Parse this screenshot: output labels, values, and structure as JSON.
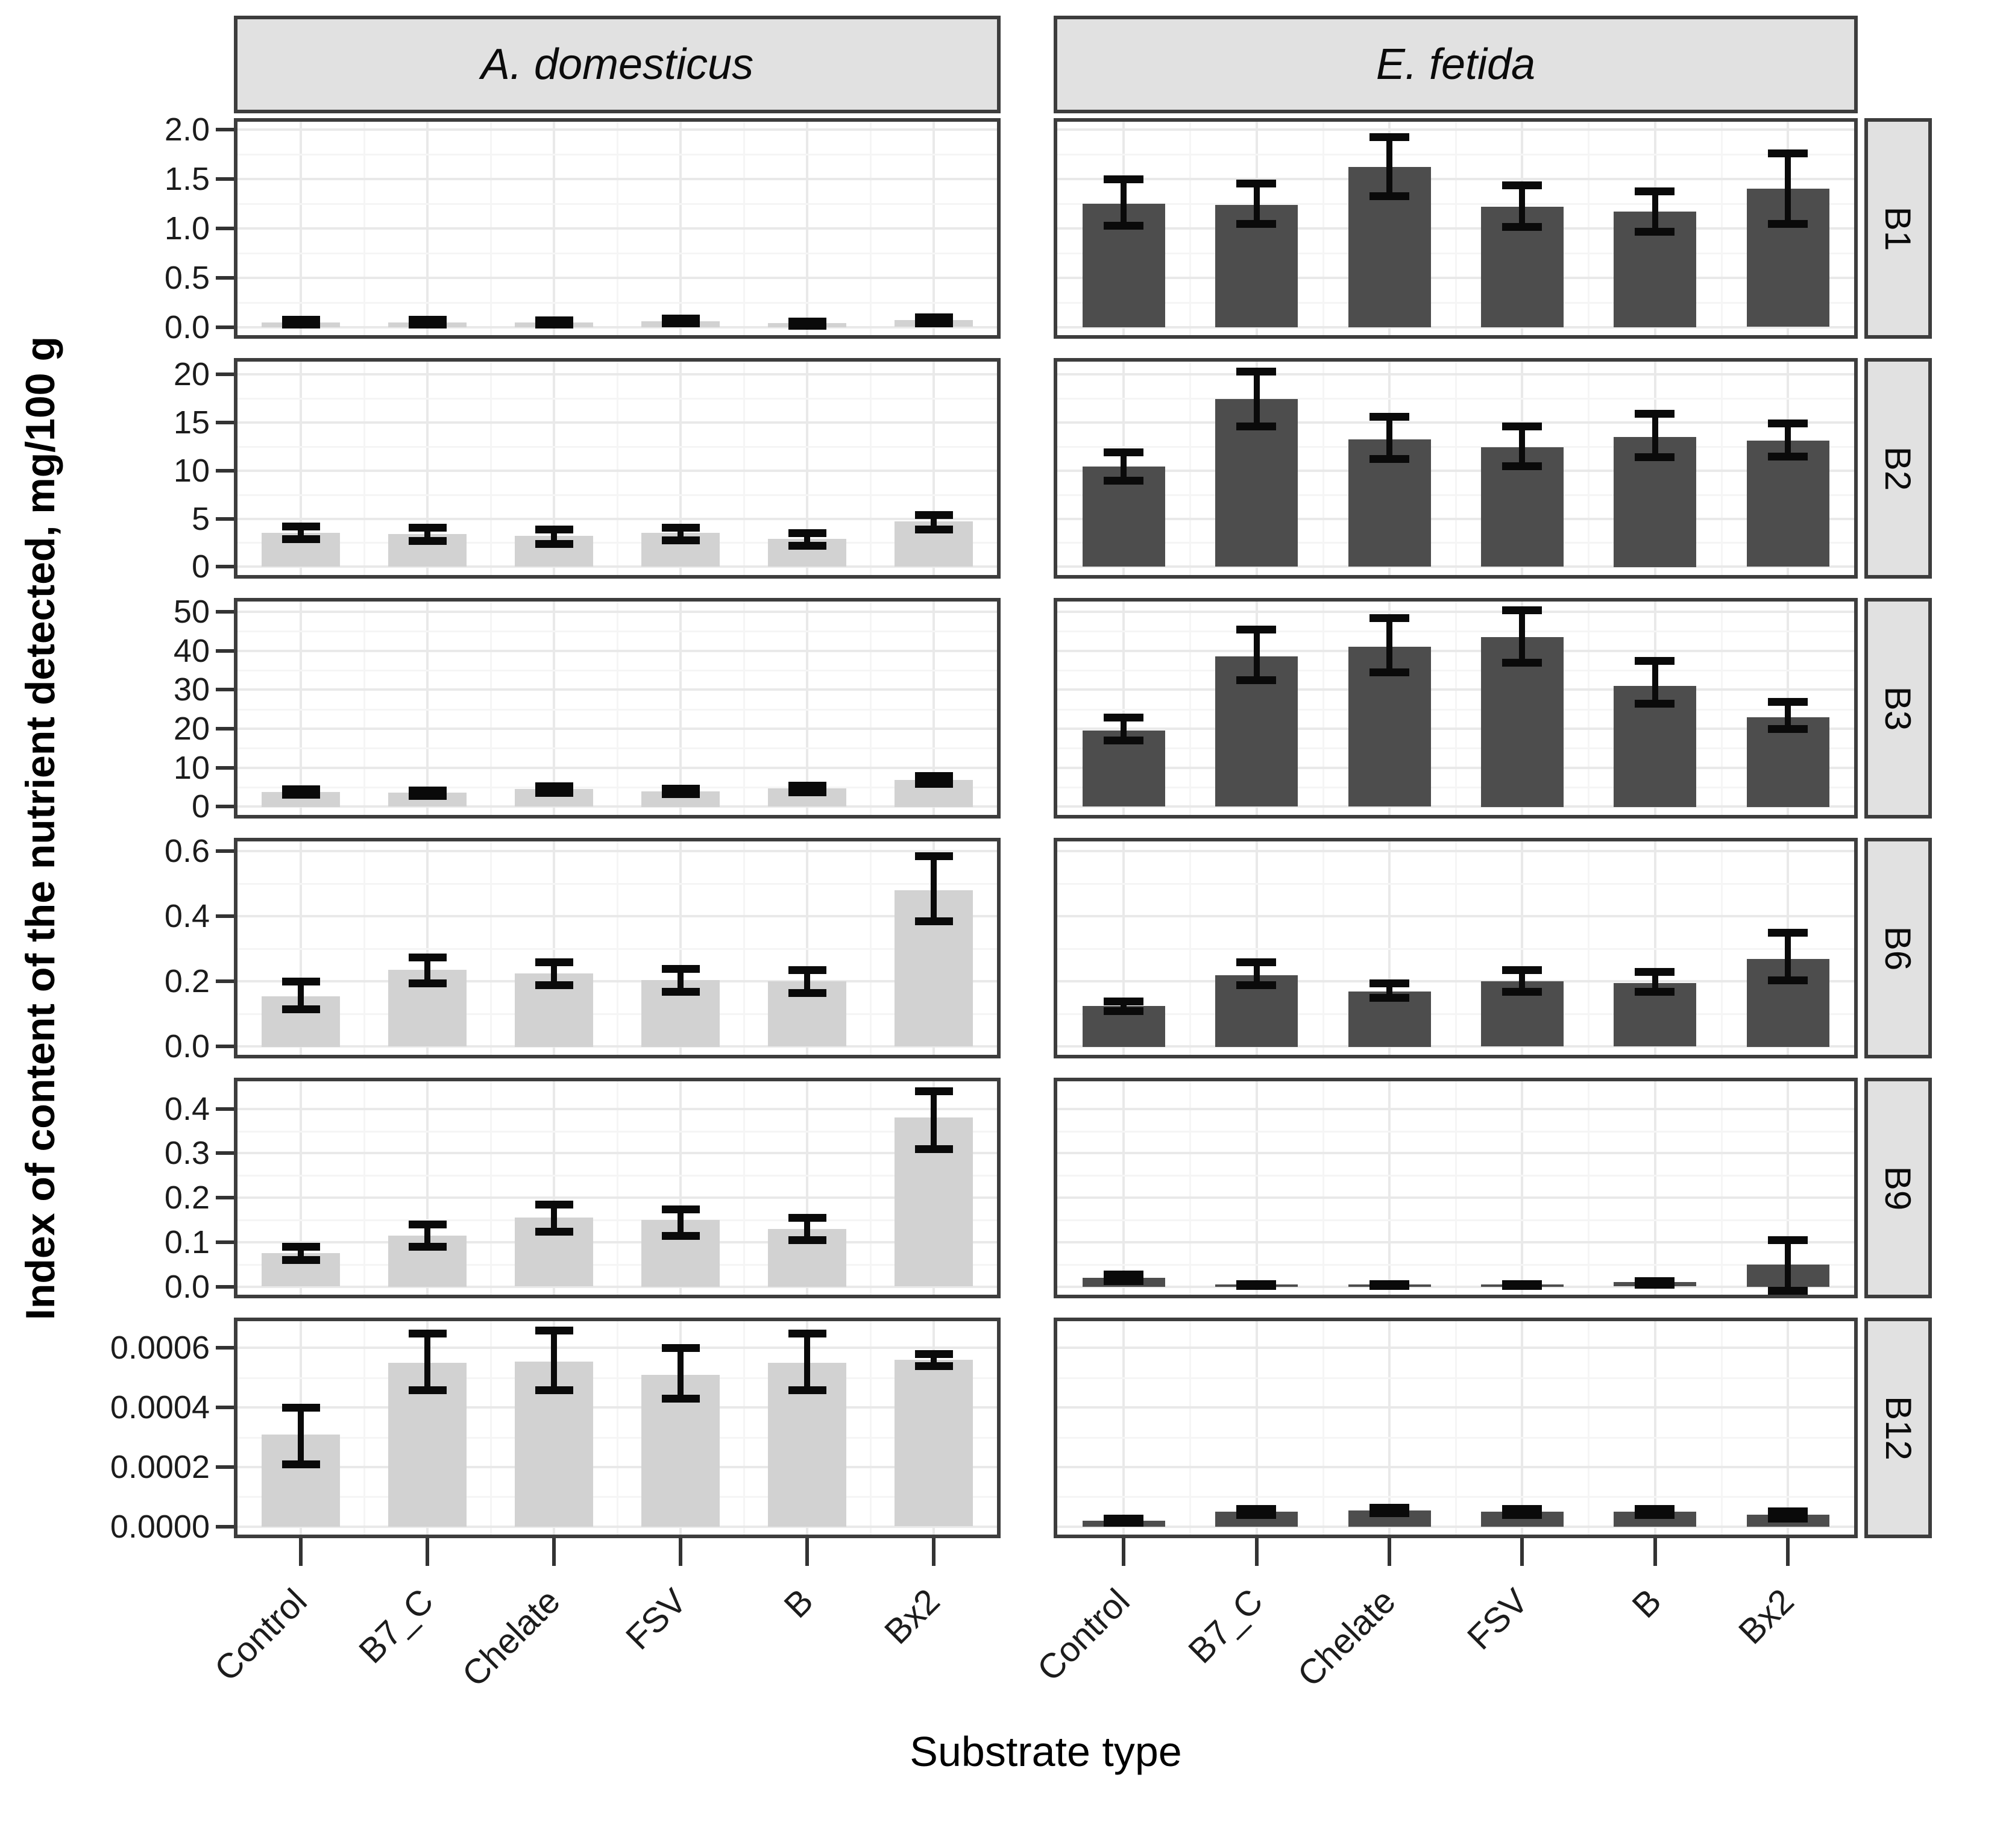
{
  "chart_data": {
    "type": "bar",
    "title": "",
    "xlabel": "Substrate type",
    "ylabel": "Index of content of the nutrient detected, mg/100 g",
    "facet_cols": [
      "A. domesticus",
      "E. fetida"
    ],
    "facet_rows": [
      "B1",
      "B2",
      "B3",
      "B6",
      "B9",
      "B12"
    ],
    "categories": [
      "Control",
      "B7_C",
      "Chelate",
      "FSV",
      "B",
      "Bx2"
    ],
    "legend_position": "none",
    "grid": "on",
    "error_bars": true,
    "col_colors": [
      "#d2d2d2",
      "#4d4d4d"
    ],
    "error_color": "#0a0a0a",
    "strip_bg": "#e1e1e1",
    "panel_border": "#3d3d3d",
    "rows": [
      {
        "label": "B1",
        "ylim": [
          -0.08,
          2.08
        ],
        "tick_values": [
          0.0,
          0.5,
          1.0,
          1.5,
          2.0
        ],
        "tick_labels": [
          "0.0",
          "0.5",
          "1.0",
          "1.5",
          "2.0"
        ],
        "series": [
          {
            "facet": "A. domesticus",
            "values": [
              0.05,
              0.05,
              0.05,
              0.06,
              0.04,
              0.07
            ],
            "err_low": [
              0.03,
              0.03,
              0.03,
              0.04,
              0.02,
              0.04
            ],
            "err_high": [
              0.08,
              0.08,
              0.07,
              0.09,
              0.06,
              0.1
            ]
          },
          {
            "facet": "E. fetida",
            "values": [
              1.25,
              1.24,
              1.62,
              1.22,
              1.17,
              1.4
            ],
            "err_low": [
              1.03,
              1.05,
              1.33,
              1.02,
              0.97,
              1.05
            ],
            "err_high": [
              1.5,
              1.46,
              1.93,
              1.44,
              1.38,
              1.76
            ]
          }
        ]
      },
      {
        "label": "B2",
        "ylim": [
          -0.85,
          21.3
        ],
        "tick_values": [
          0,
          5,
          10,
          15,
          20
        ],
        "tick_labels": [
          "0",
          "5",
          "10",
          "15",
          "20"
        ],
        "series": [
          {
            "facet": "A. domesticus",
            "values": [
              3.5,
              3.4,
              3.2,
              3.5,
              2.9,
              4.7
            ],
            "err_low": [
              2.9,
              2.7,
              2.4,
              2.8,
              2.2,
              3.9
            ],
            "err_high": [
              4.2,
              4.1,
              3.9,
              4.1,
              3.5,
              5.4
            ]
          },
          {
            "facet": "E. fetida",
            "values": [
              10.4,
              17.4,
              13.2,
              12.4,
              13.5,
              13.1
            ],
            "err_low": [
              9.0,
              14.6,
              11.2,
              10.5,
              11.4,
              11.5
            ],
            "err_high": [
              11.9,
              20.3,
              15.6,
              14.6,
              15.9,
              14.9
            ]
          }
        ]
      },
      {
        "label": "B3",
        "ylim": [
          -2.1,
          52.6
        ],
        "tick_values": [
          0,
          10,
          20,
          30,
          40,
          50
        ],
        "tick_labels": [
          "0",
          "10",
          "20",
          "30",
          "40",
          "50"
        ],
        "series": [
          {
            "facet": "A. domesticus",
            "values": [
              3.8,
              3.6,
              4.5,
              4.0,
              4.7,
              6.9
            ],
            "err_low": [
              3.1,
              2.8,
              3.6,
              3.3,
              3.8,
              5.9
            ],
            "err_high": [
              4.5,
              4.3,
              5.3,
              4.7,
              5.5,
              7.9
            ]
          },
          {
            "facet": "E. fetida",
            "values": [
              19.5,
              38.5,
              41.0,
              43.5,
              31.0,
              23.0
            ],
            "err_low": [
              17.0,
              32.5,
              34.5,
              37.0,
              26.5,
              20.0
            ],
            "err_high": [
              23.0,
              45.5,
              48.5,
              50.5,
              37.5,
              27.0
            ]
          }
        ]
      },
      {
        "label": "B6",
        "ylim": [
          -0.025,
          0.63
        ],
        "tick_values": [
          0.0,
          0.2,
          0.4,
          0.6
        ],
        "tick_labels": [
          "0.0",
          "0.2",
          "0.4",
          "0.6"
        ],
        "series": [
          {
            "facet": "A. domesticus",
            "values": [
              0.155,
              0.235,
              0.225,
              0.205,
              0.2,
              0.48
            ],
            "err_low": [
              0.115,
              0.195,
              0.19,
              0.17,
              0.165,
              0.385
            ],
            "err_high": [
              0.2,
              0.275,
              0.26,
              0.24,
              0.235,
              0.585
            ]
          },
          {
            "facet": "E. fetida",
            "values": [
              0.125,
              0.22,
              0.17,
              0.2,
              0.195,
              0.27
            ],
            "err_low": [
              0.11,
              0.19,
              0.15,
              0.17,
              0.17,
              0.205
            ],
            "err_high": [
              0.14,
              0.26,
              0.195,
              0.235,
              0.23,
              0.35
            ]
          }
        ]
      },
      {
        "label": "B9",
        "ylim": [
          -0.018,
          0.462
        ],
        "tick_values": [
          0.0,
          0.1,
          0.2,
          0.3,
          0.4
        ],
        "tick_labels": [
          "0.0",
          "0.1",
          "0.2",
          "0.3",
          "0.4"
        ],
        "series": [
          {
            "facet": "A. domesticus",
            "values": [
              0.075,
              0.115,
              0.155,
              0.15,
              0.13,
              0.38
            ],
            "err_low": [
              0.06,
              0.09,
              0.125,
              0.115,
              0.105,
              0.31
            ],
            "err_high": [
              0.09,
              0.14,
              0.185,
              0.175,
              0.155,
              0.44
            ]
          },
          {
            "facet": "E. fetida",
            "values": [
              0.02,
              0.005,
              0.005,
              0.005,
              0.01,
              0.05
            ],
            "err_low": [
              0.013,
              0.003,
              0.003,
              0.003,
              0.005,
              -0.008
            ],
            "err_high": [
              0.028,
              0.007,
              0.007,
              0.007,
              0.013,
              0.105
            ]
          }
        ]
      },
      {
        "label": "B12",
        "ylim": [
          -2.7e-05,
          0.00069
        ],
        "tick_values": [
          0.0,
          0.0002,
          0.0004,
          0.0006
        ],
        "tick_labels": [
          "0.0000",
          "0.0002",
          "0.0004",
          "0.0006"
        ],
        "series": [
          {
            "facet": "A. domesticus",
            "values": [
              0.00031,
              0.00055,
              0.000555,
              0.00051,
              0.00055,
              0.00056
            ],
            "err_low": [
              0.00021,
              0.00046,
              0.00046,
              0.00043,
              0.00046,
              0.00054
            ],
            "err_high": [
              0.0004,
              0.00065,
              0.00066,
              0.0006,
              0.00065,
              0.00058
            ]
          },
          {
            "facet": "E. fetida",
            "values": [
              2e-05,
              5e-05,
              5.5e-05,
              5e-05,
              5e-05,
              4e-05
            ],
            "err_low": [
              1.3e-05,
              4e-05,
              4.5e-05,
              4e-05,
              4e-05,
              2.8e-05
            ],
            "err_high": [
              2.7e-05,
              6e-05,
              6.5e-05,
              6e-05,
              6e-05,
              5.2e-05
            ]
          }
        ]
      }
    ]
  }
}
